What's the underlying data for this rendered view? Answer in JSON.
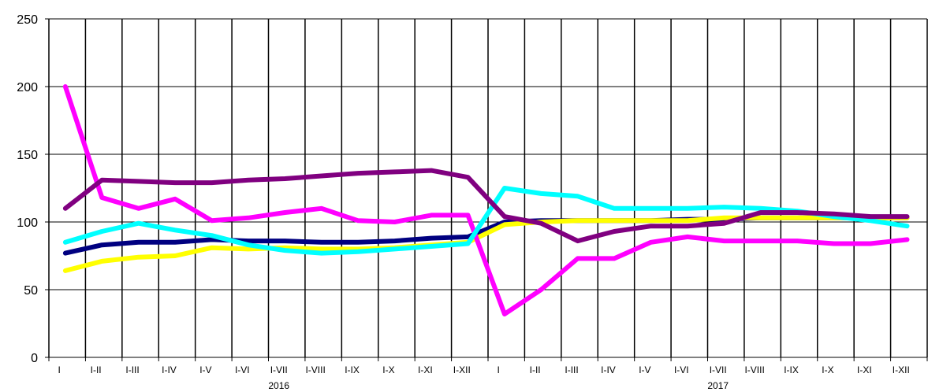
{
  "chart_data": {
    "type": "line",
    "ylim": [
      0,
      250
    ],
    "yticks": [
      0,
      50,
      100,
      150,
      200,
      250
    ],
    "grid": true,
    "categories": [
      "I",
      "I-II",
      "I-III",
      "I-IV",
      "I-V",
      "I-VI",
      "I-VII",
      "I-VIII",
      "I-IX",
      "I-X",
      "I-XI",
      "I-XII",
      "I",
      "I-II",
      "I-III",
      "I-IV",
      "I-V",
      "I-VI",
      "I-VII",
      "I-VIII",
      "I-IX",
      "I-X",
      "I-XI",
      "I-XII"
    ],
    "year_labels": [
      {
        "text": "2016",
        "category_index": 6
      },
      {
        "text": "2017",
        "category_index": 18
      }
    ],
    "series": [
      {
        "color": "#000080",
        "values": [
          77,
          83,
          85,
          85,
          87,
          86,
          86,
          85,
          85,
          86,
          88,
          89,
          100,
          101,
          101,
          101,
          101,
          102,
          102,
          103,
          103,
          103,
          103,
          103
        ]
      },
      {
        "color": "#FFFF00",
        "values": [
          64,
          71,
          74,
          75,
          81,
          80,
          81,
          80,
          80,
          81,
          83,
          85,
          98,
          100,
          101,
          101,
          101,
          101,
          103,
          103,
          103,
          103,
          103,
          103
        ]
      },
      {
        "color": "#FF00FF",
        "values": [
          200,
          118,
          110,
          117,
          101,
          103,
          107,
          110,
          101,
          100,
          105,
          105,
          32,
          50,
          73,
          73,
          85,
          89,
          86,
          86,
          86,
          84,
          84,
          87
        ]
      },
      {
        "color": "#00FFFF",
        "values": [
          85,
          93,
          99,
          94,
          90,
          83,
          79,
          77,
          78,
          80,
          82,
          84,
          125,
          121,
          119,
          110,
          110,
          110,
          111,
          110,
          108,
          104,
          101,
          97
        ]
      },
      {
        "color": "#800080",
        "values": [
          110,
          131,
          130,
          129,
          129,
          131,
          132,
          134,
          136,
          137,
          138,
          133,
          104,
          99,
          86,
          93,
          97,
          97,
          99,
          107,
          107,
          106,
          104,
          104
        ]
      }
    ]
  }
}
